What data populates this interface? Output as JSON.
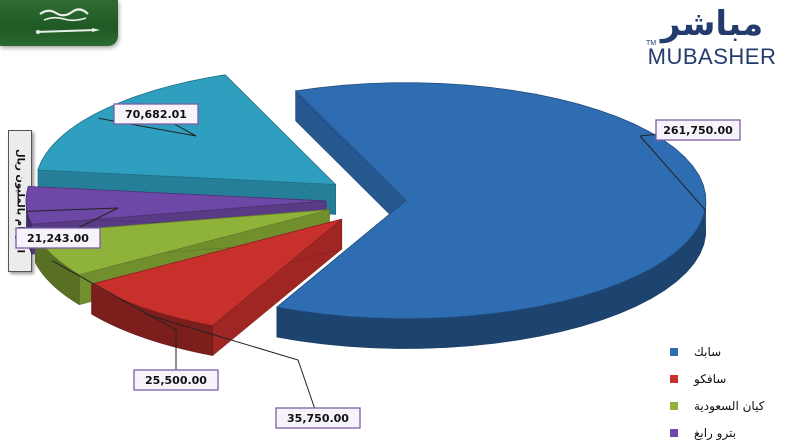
{
  "brand": {
    "logo_ar": "مباشر",
    "logo_en": "MUBASHER",
    "logo_tm": "TM"
  },
  "units_label": "الأرقام بالمليون ريال",
  "chart_data": {
    "type": "pie",
    "title": "",
    "series": [
      {
        "name": "سابك",
        "value": 261750.0,
        "label": "261,750.00",
        "color": "#2f6db3"
      },
      {
        "name": "سافكو",
        "value": 35750.0,
        "label": "35,750.00",
        "color": "#c8302c"
      },
      {
        "name": "كيان السعودية",
        "value": 25500.0,
        "label": "25,500.00",
        "color": "#8fb33a"
      },
      {
        "name": "بترو رابغ",
        "value": 21243.0,
        "label": "21,243.00",
        "color": "#6e48a6"
      },
      {
        "name": "",
        "value": 70682.01,
        "label": "70,682.01",
        "color": "#2f9fbf"
      }
    ],
    "legend_position": "bottom-right",
    "legend": [
      "سابك",
      "سافكو",
      "كيان السعودية",
      "بترو رابغ"
    ]
  }
}
